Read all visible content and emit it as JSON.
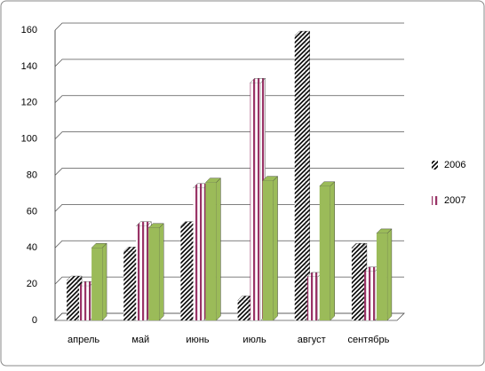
{
  "chart_data": {
    "type": "bar3d",
    "categories": [
      "апрель",
      "май",
      "июнь",
      "июль",
      "август",
      "сентябрь"
    ],
    "series": [
      {
        "name": "2006",
        "color": "#000000",
        "pattern": "diagonal",
        "values": [
          22,
          38,
          52,
          11,
          157,
          40
        ]
      },
      {
        "name": "2007",
        "color": "#993366",
        "pattern": "vertical",
        "values": [
          19,
          52,
          73,
          131,
          24,
          27
        ]
      },
      {
        "color": "#9bbb59",
        "pattern": "solid",
        "values": [
          40,
          51,
          76,
          77,
          74,
          48
        ]
      }
    ],
    "ylim": [
      0,
      160
    ],
    "yticks": [
      0,
      20,
      40,
      60,
      80,
      100,
      120,
      140,
      160
    ],
    "grid": true,
    "legend": "right"
  }
}
